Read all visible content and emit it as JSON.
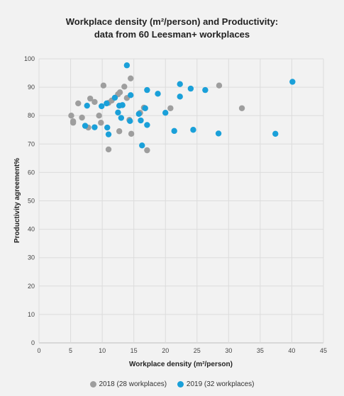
{
  "chart_data": {
    "type": "scatter",
    "title_line1": "Workplace density (m²/person) and Productivity:",
    "title_line2": "data from 60 Leesman+ workplaces",
    "xlabel": "Workplace density (m²/person)",
    "ylabel": "Productivity agreement%",
    "xlim": [
      0,
      45
    ],
    "ylim": [
      0,
      100
    ],
    "x_ticks": [
      0,
      5,
      10,
      15,
      20,
      25,
      30,
      35,
      40,
      45
    ],
    "y_ticks": [
      0,
      10,
      20,
      30,
      40,
      50,
      60,
      70,
      80,
      90,
      100
    ],
    "grid": true,
    "legend_position": "bottom",
    "series": [
      {
        "name": "2018 (28 workplaces)",
        "color": "#9e9e9e",
        "points": [
          {
            "x": 5.1,
            "y": 80.0
          },
          {
            "x": 5.4,
            "y": 78.0
          },
          {
            "x": 5.4,
            "y": 77.5
          },
          {
            "x": 6.2,
            "y": 84.3
          },
          {
            "x": 6.8,
            "y": 79.3
          },
          {
            "x": 7.8,
            "y": 75.8
          },
          {
            "x": 8.1,
            "y": 86.0
          },
          {
            "x": 8.8,
            "y": 84.8
          },
          {
            "x": 9.5,
            "y": 80.0
          },
          {
            "x": 9.8,
            "y": 77.5
          },
          {
            "x": 10.2,
            "y": 90.6
          },
          {
            "x": 11.0,
            "y": 68.1
          },
          {
            "x": 11.5,
            "y": 85.3
          },
          {
            "x": 12.5,
            "y": 87.5
          },
          {
            "x": 12.7,
            "y": 74.5
          },
          {
            "x": 13.5,
            "y": 90.2
          },
          {
            "x": 13.9,
            "y": 86.2
          },
          {
            "x": 14.5,
            "y": 93.1
          },
          {
            "x": 14.6,
            "y": 73.6
          },
          {
            "x": 16.0,
            "y": 81.0
          },
          {
            "x": 16.6,
            "y": 82.8
          },
          {
            "x": 17.1,
            "y": 67.8
          },
          {
            "x": 20.8,
            "y": 82.6
          },
          {
            "x": 28.5,
            "y": 90.6
          },
          {
            "x": 32.1,
            "y": 82.6
          },
          {
            "x": 12.8,
            "y": 88.2
          },
          {
            "x": 14.3,
            "y": 78.5
          },
          {
            "x": 11.0,
            "y": 84.5
          }
        ]
      },
      {
        "name": "2019 (32 workplaces)",
        "color": "#1aa0d9",
        "points": [
          {
            "x": 7.3,
            "y": 76.4
          },
          {
            "x": 7.6,
            "y": 83.5
          },
          {
            "x": 8.8,
            "y": 75.9
          },
          {
            "x": 9.9,
            "y": 83.3
          },
          {
            "x": 10.7,
            "y": 84.3
          },
          {
            "x": 10.8,
            "y": 75.8
          },
          {
            "x": 11.0,
            "y": 73.4
          },
          {
            "x": 12.0,
            "y": 86.3
          },
          {
            "x": 12.5,
            "y": 81.1
          },
          {
            "x": 12.7,
            "y": 83.5
          },
          {
            "x": 13.0,
            "y": 79.2
          },
          {
            "x": 13.9,
            "y": 97.7
          },
          {
            "x": 14.4,
            "y": 78.1
          },
          {
            "x": 14.5,
            "y": 87.2
          },
          {
            "x": 15.8,
            "y": 80.6
          },
          {
            "x": 16.1,
            "y": 78.3
          },
          {
            "x": 16.3,
            "y": 69.5
          },
          {
            "x": 16.8,
            "y": 82.6
          },
          {
            "x": 17.1,
            "y": 76.7
          },
          {
            "x": 17.1,
            "y": 89.0
          },
          {
            "x": 18.8,
            "y": 87.7
          },
          {
            "x": 20.0,
            "y": 81.0
          },
          {
            "x": 21.4,
            "y": 74.6
          },
          {
            "x": 22.3,
            "y": 86.7
          },
          {
            "x": 22.3,
            "y": 91.1
          },
          {
            "x": 24.0,
            "y": 89.5
          },
          {
            "x": 24.4,
            "y": 75.0
          },
          {
            "x": 26.3,
            "y": 89.0
          },
          {
            "x": 28.4,
            "y": 73.7
          },
          {
            "x": 37.4,
            "y": 73.6
          },
          {
            "x": 40.1,
            "y": 91.9
          },
          {
            "x": 13.2,
            "y": 83.7
          }
        ]
      }
    ]
  }
}
